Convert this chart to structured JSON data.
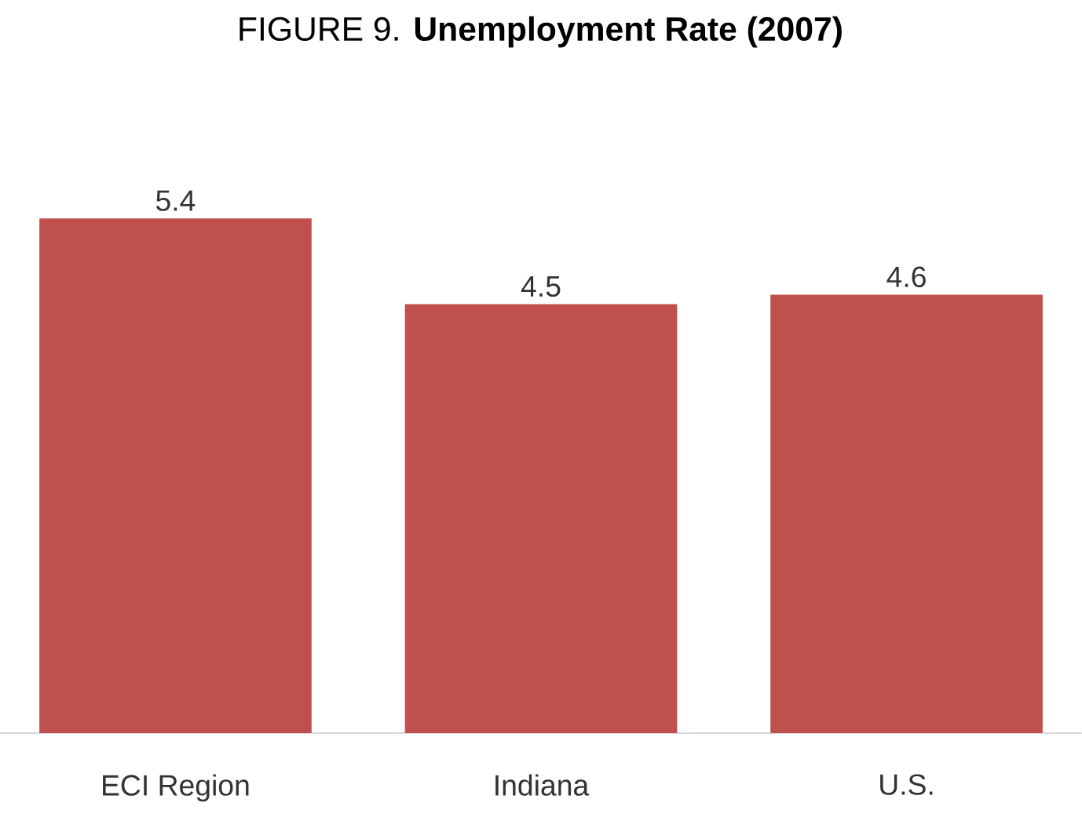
{
  "chart_data": {
    "type": "bar",
    "title": "FIGURE 9. **Unemployment Rate (2007)**",
    "categories": [
      "ECI Region",
      "Indiana",
      "U.S."
    ],
    "values": [
      5.4,
      4.5,
      4.6
    ],
    "color": "#c0504d",
    "data_labels": true
  }
}
